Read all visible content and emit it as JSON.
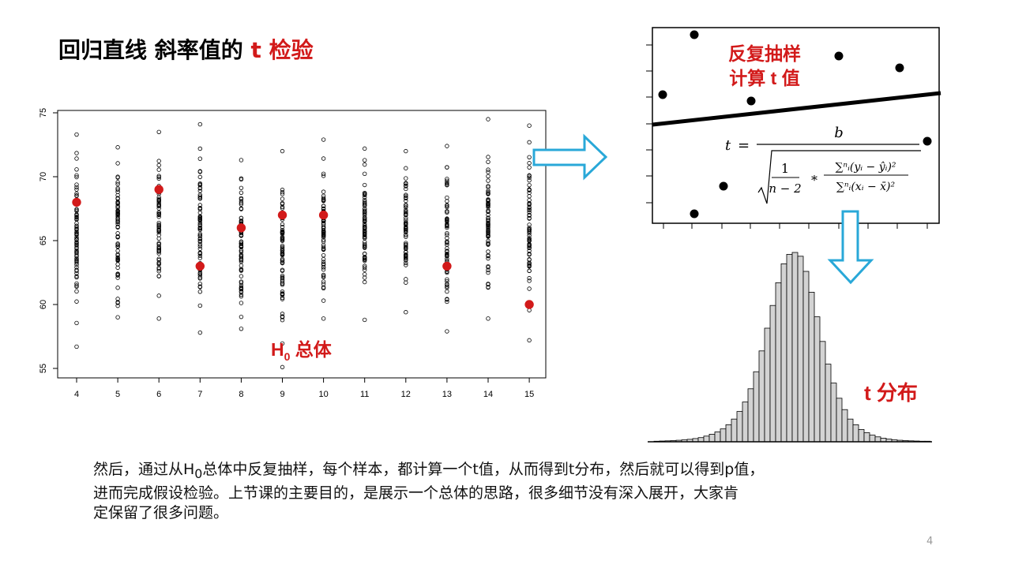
{
  "title": {
    "main": "回归直线 斜率值的 ",
    "highlight": "t 检验"
  },
  "colors": {
    "accent_red": "#d21a1a",
    "arrow_blue": "#29a8d8",
    "hist_fill": "#d3d3d3"
  },
  "chart_data": [
    {
      "type": "scatter",
      "x_ticks": [
        "4",
        "5",
        "6",
        "7",
        "8",
        "9",
        "10",
        "11",
        "12",
        "13",
        "14",
        "15"
      ],
      "y_ticks": [
        "55",
        "60",
        "65",
        "70",
        "75"
      ],
      "ylim": [
        55,
        75
      ],
      "annotation": {
        "H": "H",
        "sub": "0",
        "text": " 总体"
      },
      "highlighted_series": {
        "x": [
          4,
          6,
          7,
          8,
          9,
          10,
          13,
          15
        ],
        "y": [
          68,
          69,
          63,
          66,
          67,
          67,
          63,
          60
        ]
      },
      "population_columns": [
        {
          "x": 4,
          "y_min": 56.7,
          "y_max": 73.3
        },
        {
          "x": 5,
          "y_min": 59,
          "y_max": 72.3
        },
        {
          "x": 6,
          "y_min": 58.9,
          "y_max": 73.5
        },
        {
          "x": 7,
          "y_min": 57.8,
          "y_max": 74.1
        },
        {
          "x": 8,
          "y_min": 58.1,
          "y_max": 71.3
        },
        {
          "x": 9,
          "y_min": 55.1,
          "y_max": 72
        },
        {
          "x": 10,
          "y_min": 58.9,
          "y_max": 72.9
        },
        {
          "x": 11,
          "y_min": 58.8,
          "y_max": 72.2
        },
        {
          "x": 12,
          "y_min": 59.4,
          "y_max": 72
        },
        {
          "x": 13,
          "y_min": 57.9,
          "y_max": 72.4
        },
        {
          "x": 14,
          "y_min": 58.9,
          "y_max": 74.5
        },
        {
          "x": 15,
          "y_min": 57.2,
          "y_max": 74
        }
      ]
    },
    {
      "type": "scatter",
      "annotation_line1": "反复抽样",
      "annotation_line2": "计算 t 值",
      "formula": "t = b / sqrt( 1/(n−2) * Σ_i^n (y_i − ŷ_i)² / Σ_i^n (x_i − x̄)² )",
      "formula_parts": {
        "t": "t",
        "eq": "=",
        "b": "b",
        "one": "1",
        "nminus2": "n − 2",
        "star": "*",
        "num": "∑ⁿᵢ(yᵢ − ŷᵢ)²",
        "den": "∑ⁿᵢ(xᵢ − x̄)²"
      }
    },
    {
      "type": "bar",
      "label": "t 分布",
      "description_values_relative": [
        0.3,
        0.4,
        0.5,
        0.6,
        0.8,
        1,
        1.3,
        1.7,
        2.2,
        3,
        4,
        5.2,
        6.8,
        9,
        12,
        16,
        21,
        28,
        37,
        48,
        60,
        72,
        84,
        94,
        99,
        100,
        98,
        90,
        79,
        66,
        53,
        41,
        31,
        23,
        17,
        12,
        9,
        6.5,
        4.8,
        3.5,
        2.6,
        1.9,
        1.4,
        1,
        0.8,
        0.6,
        0.5,
        0.4,
        0.3,
        0.3
      ]
    }
  ],
  "caption": {
    "line1_a": "然后，通过从H",
    "line1_sub": "0",
    "line1_b": "总体中反复抽样，每个样本，都计算一个t值，从而得到t分布，然后就可以得到p值，",
    "line2": "进而完成假设检验。上节课的主要目的，是展示一个总体的思路，很多细节没有深入展开，大家肯",
    "line3": "定保留了很多问题。"
  },
  "page_number": "4"
}
